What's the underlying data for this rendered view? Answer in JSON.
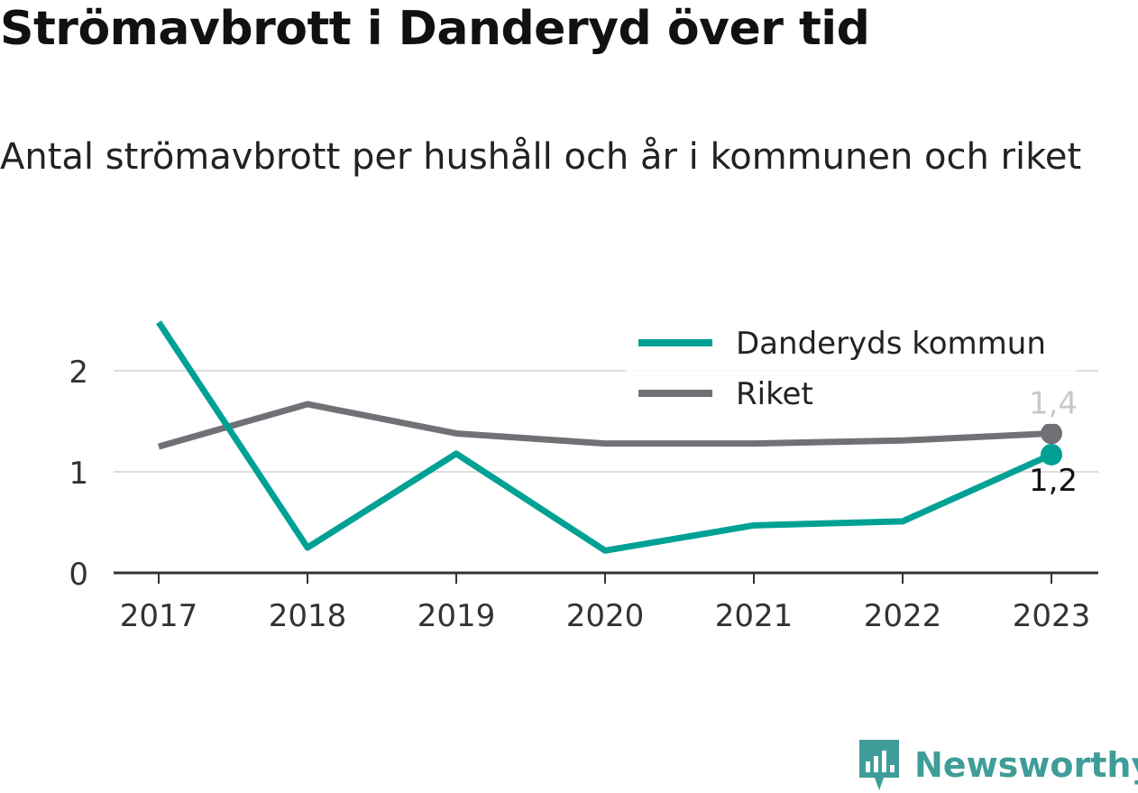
{
  "title": "Strömavbrott i Danderyd över tid",
  "subtitle": "Antal strömavbrott per hushåll och år i kommunen och riket",
  "brand": {
    "name": "Newsworthy",
    "logo_icon": "bar-chart-badge-icon"
  },
  "colors": {
    "danderyd": "#00a195",
    "riket": "#727077",
    "axis": "#333333",
    "grid": "#dddddd",
    "brand": "#3f9d99"
  },
  "chart_data": {
    "type": "line",
    "categories": [
      "2017",
      "2018",
      "2019",
      "2020",
      "2021",
      "2022",
      "2023"
    ],
    "series": [
      {
        "name": "Danderyds kommun",
        "values": [
          2.48,
          0.25,
          1.18,
          0.22,
          0.47,
          0.51,
          1.17
        ],
        "end_label": "1,2"
      },
      {
        "name": "Riket",
        "values": [
          1.25,
          1.67,
          1.38,
          1.28,
          1.28,
          1.31,
          1.38
        ],
        "end_label": "1,4"
      }
    ],
    "ylim": [
      0,
      2.5
    ],
    "yticks": [
      "0",
      "1",
      "2"
    ],
    "grid": true,
    "legend": "top-right"
  }
}
